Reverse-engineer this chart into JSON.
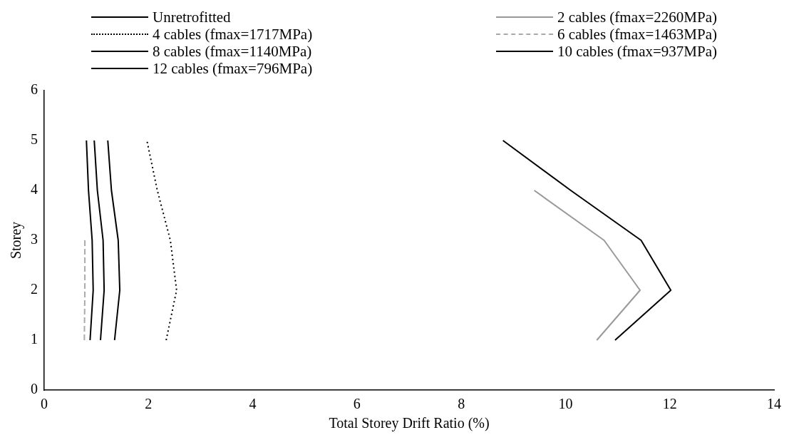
{
  "chart_data": {
    "type": "line",
    "xlabel": "Total Storey Drift Ratio (%)",
    "ylabel": "Storey",
    "xlim": [
      0,
      14
    ],
    "xticks": [
      0,
      2,
      4,
      6,
      8,
      10,
      12,
      14
    ],
    "ylim": [
      0,
      6
    ],
    "yticks": [
      0,
      1,
      2,
      3,
      4,
      5,
      6
    ],
    "grid": false,
    "legend": "top",
    "marker": "none",
    "series": [
      {
        "name": "Unretrofitted",
        "color": "#000000",
        "line_style": "solid",
        "x": [
          10.95,
          12.02,
          11.45,
          10.1,
          8.8
        ],
        "values": [
          1,
          2,
          3,
          4,
          5
        ]
      },
      {
        "name": "2 cables (fmax=2260MPa)",
        "color": "#999999",
        "line_style": "solid",
        "x": [
          10.6,
          11.43,
          10.74,
          9.4
        ],
        "values": [
          1,
          2,
          3,
          4
        ]
      },
      {
        "name": "4 cables (fmax=1717MPa)",
        "color": "#000000",
        "line_style": "dotted",
        "x": [
          2.34,
          2.54,
          2.42,
          2.17,
          1.97
        ],
        "values": [
          1,
          2,
          3,
          4,
          5
        ]
      },
      {
        "name": "6 cables (fmax=1463MPa)",
        "color": "#aaaaaa",
        "line_style": "dashed",
        "x": [
          0.77,
          0.78,
          0.78
        ],
        "values": [
          1,
          2,
          3
        ]
      },
      {
        "name": "8 cables (fmax=1140MPa)",
        "color": "#000000",
        "line_style": "solid",
        "x": [
          1.35,
          1.45,
          1.42,
          1.29,
          1.22
        ],
        "values": [
          1,
          2,
          3,
          4,
          5
        ]
      },
      {
        "name": "10 cables (fmax=937MPa)",
        "color": "#000000",
        "line_style": "solid",
        "x": [
          1.08,
          1.15,
          1.13,
          1.02,
          0.96
        ],
        "values": [
          1,
          2,
          3,
          4,
          5
        ]
      },
      {
        "name": "12 cables (fmax=796MPa)",
        "color": "#000000",
        "line_style": "solid",
        "x": [
          0.88,
          0.94,
          0.92,
          0.85,
          0.81
        ],
        "values": [
          1,
          2,
          3,
          4,
          5
        ]
      }
    ]
  }
}
